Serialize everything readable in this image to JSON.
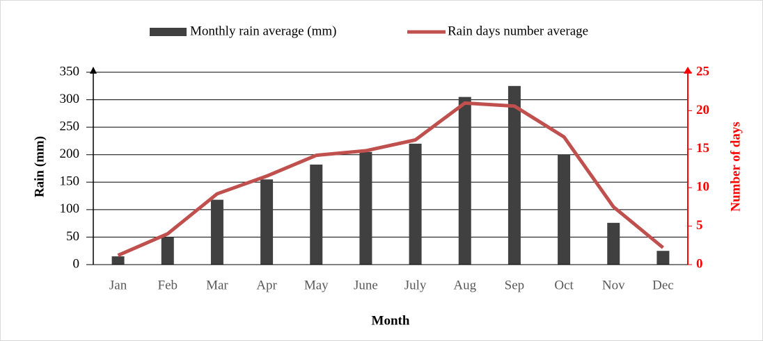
{
  "chart_data": {
    "type": "bar",
    "categories": [
      "Jan",
      "Feb",
      "Mar",
      "Apr",
      "May",
      "June",
      "July",
      "Aug",
      "Sep",
      "Oct",
      "Nov",
      "Dec"
    ],
    "series": [
      {
        "name": "Monthly rain average (mm)",
        "type": "bar",
        "color": "#404040",
        "values": [
          15,
          50,
          118,
          155,
          182,
          205,
          220,
          305,
          325,
          200,
          76,
          25
        ]
      },
      {
        "name": "Rain days number average",
        "type": "line",
        "axis": "y2",
        "color": "#c0504d",
        "values": [
          1.2,
          4,
          9.2,
          11.5,
          14.2,
          14.8,
          16.2,
          21,
          20.6,
          16.6,
          7.5,
          2.2
        ]
      }
    ],
    "ylim": [
      0,
      350
    ],
    "yticks": [
      0,
      50,
      100,
      150,
      200,
      250,
      300,
      350
    ],
    "y2lim": [
      0,
      25
    ],
    "y2ticks": [
      0,
      5,
      10,
      15,
      20,
      25
    ],
    "ylabel": "Rain (mm)",
    "y2label": "Number of days",
    "xlabel": "Month",
    "grid": true,
    "legend": "top"
  }
}
